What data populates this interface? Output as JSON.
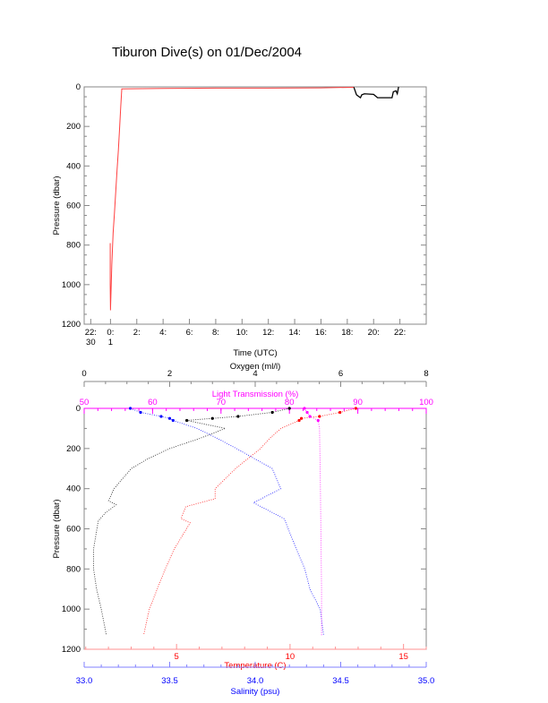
{
  "title": "Tiburon Dive(s) on 01/Dec/2004",
  "colors": {
    "axis": "#888888",
    "pressure_ascent": "#000000",
    "pressure_descent": "#ff4040",
    "oxygen": "#000000",
    "temperature": "#ff0000",
    "salinity": "#0000ff",
    "light": "#ff00ff"
  },
  "chart_data": [
    {
      "type": "line",
      "title": "Tiburon Dive(s) on 01/Dec/2004",
      "xlabel": "Time (UTC)",
      "ylabel": "Pressure (dbar)",
      "xlim": [
        -2,
        24
      ],
      "ylim": [
        1200,
        0
      ],
      "xticks": [
        {
          "v": -1.5,
          "l1": "22:",
          "l2": "30"
        },
        {
          "v": 0,
          "l1": "0:",
          "l2": "1"
        },
        {
          "v": 2,
          "l1": "2:",
          "l2": ""
        },
        {
          "v": 4,
          "l1": "4:",
          "l2": ""
        },
        {
          "v": 6,
          "l1": "6:",
          "l2": ""
        },
        {
          "v": 8,
          "l1": "8:",
          "l2": ""
        },
        {
          "v": 10,
          "l1": "10:",
          "l2": ""
        },
        {
          "v": 12,
          "l1": "12:",
          "l2": ""
        },
        {
          "v": 14,
          "l1": "14:",
          "l2": ""
        },
        {
          "v": 16,
          "l1": "16:",
          "l2": ""
        },
        {
          "v": 18,
          "l1": "18:",
          "l2": ""
        },
        {
          "v": 20,
          "l1": "20:",
          "l2": ""
        },
        {
          "v": 22,
          "l1": "22:",
          "l2": ""
        }
      ],
      "yticks": [
        0,
        200,
        400,
        600,
        800,
        1000,
        1200
      ],
      "series": [
        {
          "name": "descent",
          "color": "#ff4040",
          "x": [
            -0.02,
            -0.02,
            0.0,
            0.1,
            0.2,
            0.3,
            0.4,
            0.5,
            0.6,
            0.7,
            0.78,
            0.86,
            4,
            8,
            12,
            16,
            18.5
          ],
          "y": [
            790,
            1000,
            1130,
            900,
            740,
            640,
            530,
            420,
            320,
            200,
            100,
            10,
            8,
            6,
            6,
            5,
            2
          ]
        },
        {
          "name": "ascent",
          "color": "#000000",
          "x": [
            18.5,
            18.7,
            19.0,
            19.1,
            19.3,
            20.0,
            20.3,
            20.5,
            21.4,
            21.5,
            21.7,
            21.8,
            21.9
          ],
          "y": [
            2,
            40,
            55,
            40,
            35,
            38,
            55,
            55,
            55,
            25,
            20,
            35,
            0
          ]
        }
      ]
    },
    {
      "type": "scatter",
      "ylabel": "Pressure (dbar)",
      "ylim": [
        1200,
        0
      ],
      "yticks": [
        0,
        200,
        400,
        600,
        800,
        1000,
        1200
      ],
      "axes": [
        {
          "name": "oxygen",
          "label": "Oxygen (ml/l)",
          "position": "top-outer",
          "range": [
            0,
            8
          ],
          "ticks": [
            "0",
            "2",
            "4",
            "6",
            "8"
          ],
          "tick_values": [
            0,
            2,
            4,
            6,
            8
          ]
        },
        {
          "name": "light",
          "label": "Light Transmission (%)",
          "position": "top",
          "range": [
            50,
            100
          ],
          "ticks": [
            "50",
            "60",
            "70",
            "80",
            "90",
            "100"
          ],
          "tick_values": [
            50,
            60,
            70,
            80,
            90,
            100
          ]
        },
        {
          "name": "temperature",
          "label": "Temperature (C)",
          "position": "bottom",
          "range": [
            0.93,
            16.0
          ],
          "ticks": [
            "5",
            "10",
            "15"
          ],
          "tick_values": [
            5,
            10,
            15
          ]
        },
        {
          "name": "salinity",
          "label": "Salinity (psu)",
          "position": "bottom-outer",
          "range": [
            33.0,
            35.0
          ],
          "ticks": [
            "33.0",
            "33.5",
            "34.0",
            "34.5",
            "35.0"
          ],
          "tick_values": [
            33.0,
            33.5,
            34.0,
            34.5,
            35.0
          ]
        }
      ],
      "series": [
        {
          "name": "Oxygen",
          "axis": "oxygen",
          "color": "#000000",
          "p": [
            0,
            20,
            40,
            50,
            60,
            100,
            150,
            200,
            250,
            300,
            350,
            400,
            460,
            480,
            520,
            560,
            700,
            800,
            900,
            1000,
            1130
          ],
          "v": [
            4.8,
            4.4,
            3.6,
            3.0,
            2.4,
            3.3,
            2.7,
            2.0,
            1.5,
            1.1,
            0.9,
            0.7,
            0.57,
            0.75,
            0.5,
            0.33,
            0.22,
            0.22,
            0.29,
            0.4,
            0.52
          ]
        },
        {
          "name": "Temperature",
          "axis": "temperature",
          "color": "#ff0000",
          "p": [
            0,
            20,
            40,
            50,
            60,
            100,
            150,
            200,
            300,
            400,
            450,
            490,
            550,
            570,
            700,
            800,
            1000,
            1130
          ],
          "v": [
            12.9,
            12.2,
            11.3,
            10.5,
            10.4,
            9.6,
            9.1,
            8.7,
            7.6,
            6.7,
            6.7,
            5.4,
            5.2,
            5.6,
            4.9,
            4.5,
            3.8,
            3.55
          ]
        },
        {
          "name": "Salinity",
          "axis": "salinity",
          "color": "#0000ff",
          "p": [
            0,
            20,
            40,
            50,
            60,
            100,
            150,
            200,
            300,
            400,
            470,
            550,
            700,
            800,
            900,
            1000,
            1130
          ],
          "v": [
            33.27,
            33.33,
            33.45,
            33.5,
            33.52,
            33.66,
            33.78,
            33.89,
            34.1,
            34.15,
            33.99,
            34.17,
            34.24,
            34.29,
            34.32,
            34.38,
            34.4
          ]
        },
        {
          "name": "Light Transmission",
          "axis": "light",
          "color": "#ff00ff",
          "p": [
            0,
            20,
            40,
            60,
            100,
            300,
            600,
            900,
            1130
          ],
          "v": [
            82.2,
            82.6,
            83.0,
            84.2,
            84.4,
            84.5,
            84.6,
            84.7,
            84.7
          ]
        }
      ]
    }
  ]
}
